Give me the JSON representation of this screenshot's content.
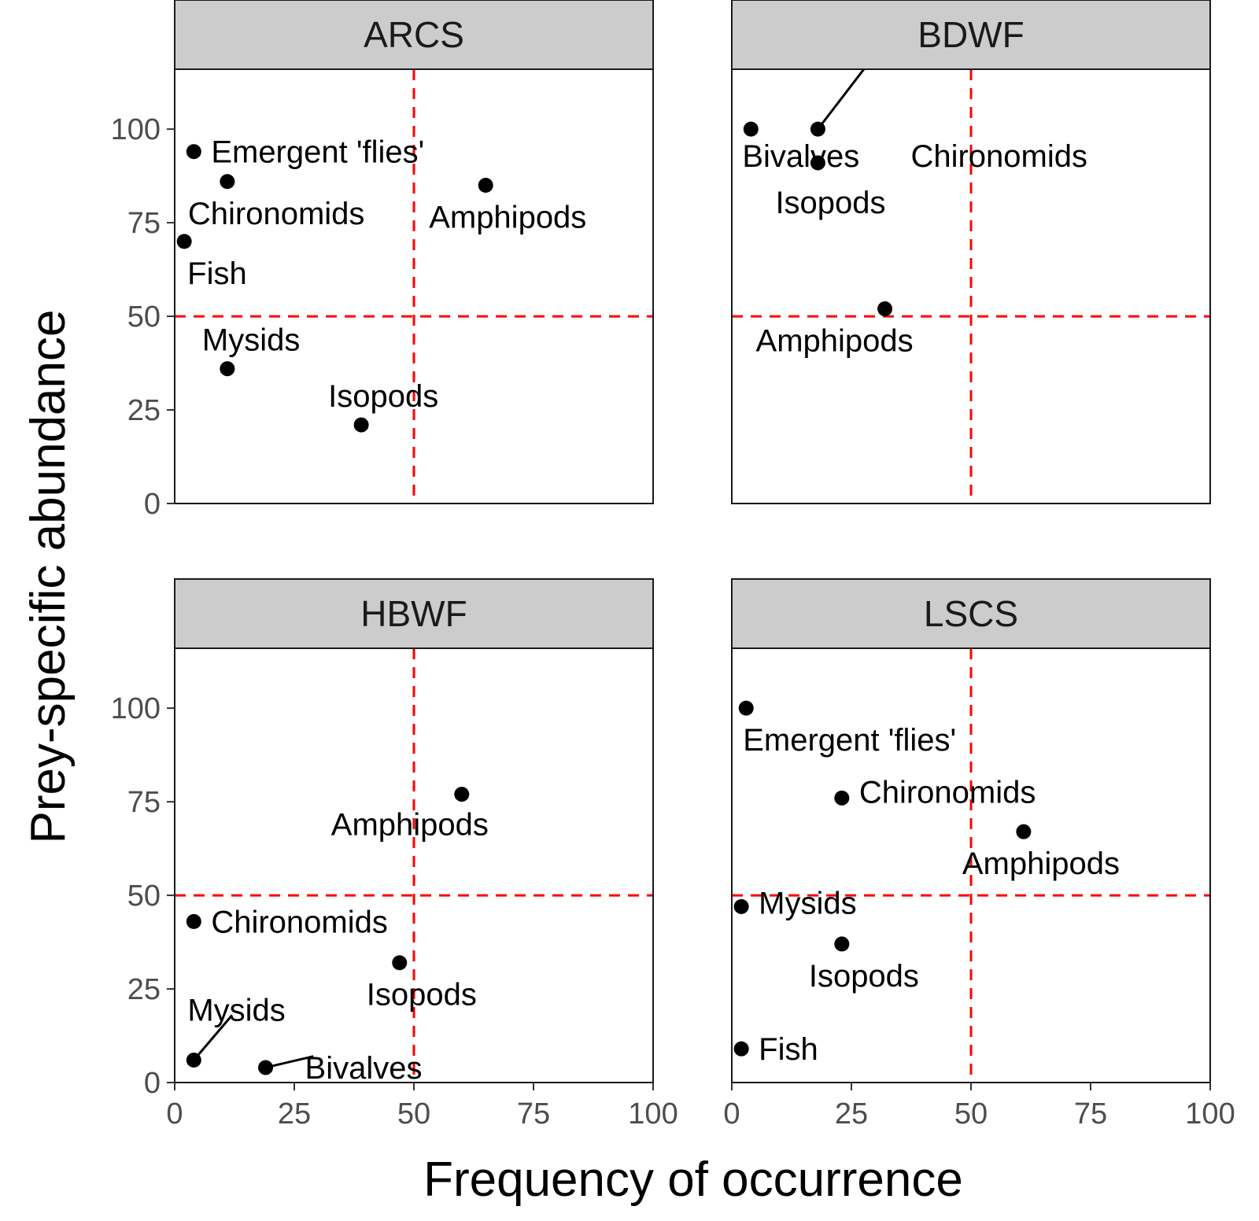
{
  "chart_data": {
    "type": "scatter",
    "xlabel": "Frequency of occurrence",
    "ylabel": "Prey-specific abundance",
    "xlim": [
      0,
      100
    ],
    "ylim": [
      0,
      100
    ],
    "x_ticks": [
      "0",
      "25",
      "50",
      "75",
      "100"
    ],
    "y_ticks": [
      "0",
      "25",
      "50",
      "75",
      "100"
    ],
    "reference_lines": {
      "x": 50,
      "y": 50,
      "color": "#ff0000",
      "style": "dashed"
    },
    "grid": false,
    "point_color": "#000000",
    "strip_color": "#cccccc",
    "panels": [
      {
        "name": "ARCS",
        "points": [
          {
            "label": "Emergent 'flies'",
            "x": 4,
            "y": 94
          },
          {
            "label": "Chironomids",
            "x": 11,
            "y": 86
          },
          {
            "label": "Amphipods",
            "x": 65,
            "y": 85
          },
          {
            "label": "Fish",
            "x": 2,
            "y": 70
          },
          {
            "label": "Mysids",
            "x": 11,
            "y": 36
          },
          {
            "label": "Isopods",
            "x": 39,
            "y": 21
          }
        ]
      },
      {
        "name": "BDWF",
        "points": [
          {
            "label": "Bivalves",
            "x": 4,
            "y": 100
          },
          {
            "label": "Chironomids",
            "x": 18,
            "y": 100
          },
          {
            "label": "Isopods",
            "x": 18,
            "y": 91
          },
          {
            "label": "Amphipods",
            "x": 32,
            "y": 52
          }
        ]
      },
      {
        "name": "HBWF",
        "points": [
          {
            "label": "Amphipods",
            "x": 60,
            "y": 77
          },
          {
            "label": "Chironomids",
            "x": 4,
            "y": 43
          },
          {
            "label": "Isopods",
            "x": 47,
            "y": 32
          },
          {
            "label": "Mysids",
            "x": 4,
            "y": 6
          },
          {
            "label": "Bivalves",
            "x": 19,
            "y": 4
          }
        ]
      },
      {
        "name": "LSCS",
        "points": [
          {
            "label": "Emergent 'flies'",
            "x": 3,
            "y": 100
          },
          {
            "label": "Chironomids",
            "x": 23,
            "y": 76
          },
          {
            "label": "Amphipods",
            "x": 61,
            "y": 67
          },
          {
            "label": "Mysids",
            "x": 2,
            "y": 47
          },
          {
            "label": "Isopods",
            "x": 23,
            "y": 37
          },
          {
            "label": "Fish",
            "x": 2,
            "y": 9
          }
        ]
      }
    ]
  }
}
